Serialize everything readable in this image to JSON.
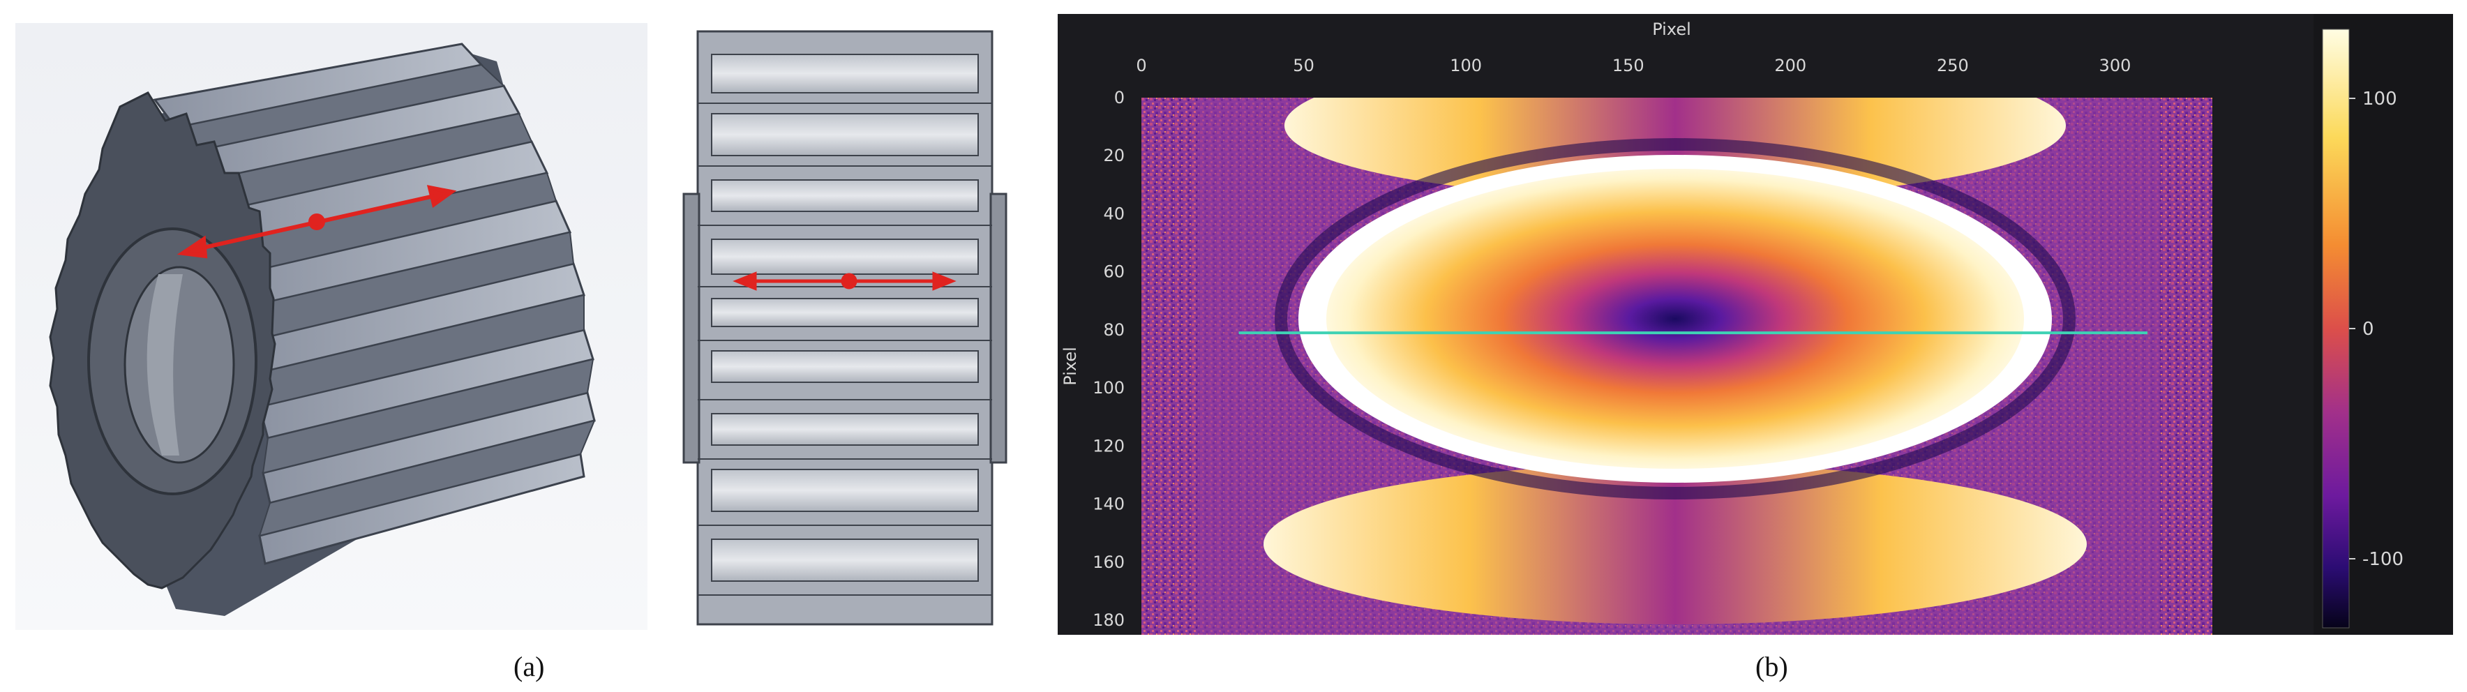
{
  "figure": {
    "panel_a": {
      "caption": "(a)",
      "iso_view": {
        "icon": "gear-isometric-icon",
        "arrow_color": "#e0231f"
      },
      "side_view": {
        "icon": "gear-side-view-icon",
        "arrow_color": "#e0231f"
      }
    },
    "panel_b": {
      "caption": "(b)",
      "chart_data": {
        "type": "heatmap",
        "xlabel": "Pixel",
        "ylabel": "Pixel",
        "xlim": [
          0,
          330
        ],
        "ylim": [
          185,
          0
        ],
        "x_ticks": [
          "0",
          "50",
          "100",
          "150",
          "200",
          "250",
          "300"
        ],
        "y_ticks": [
          "0",
          "20",
          "40",
          "60",
          "80",
          "100",
          "120",
          "140",
          "160",
          "180"
        ],
        "colorbar": {
          "ticks": [
            "100",
            "0",
            "-100"
          ],
          "range": [
            -130,
            130
          ],
          "colors": [
            "#fffde3",
            "#fcd95a",
            "#f48d32",
            "#dc4f4a",
            "#a2308a",
            "#6d1a9e",
            "#2b0c73",
            "#060319"
          ]
        },
        "line_profile": {
          "y": 81,
          "x_start": 30,
          "x_end": 310,
          "color": "#3fd2b4"
        }
      }
    }
  }
}
